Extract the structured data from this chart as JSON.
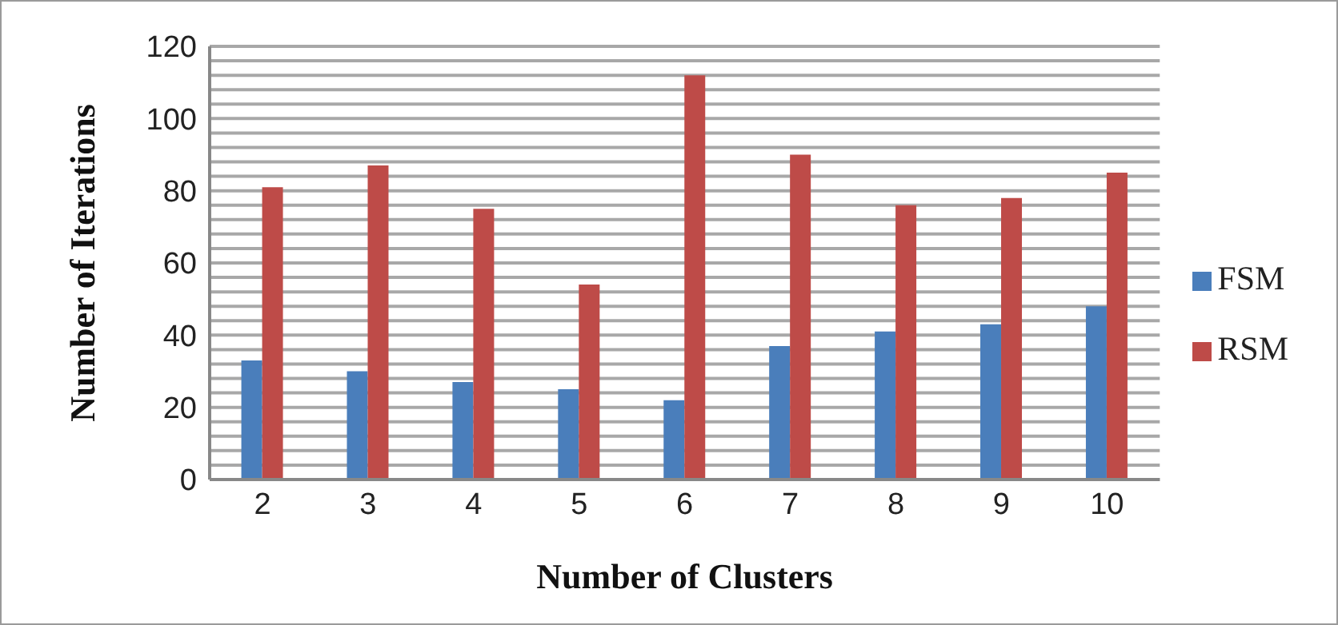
{
  "chart_data": {
    "type": "bar",
    "xlabel": "Number of Clusters",
    "ylabel": "Number of Iterations",
    "categories": [
      "2",
      "3",
      "4",
      "5",
      "6",
      "7",
      "8",
      "9",
      "10"
    ],
    "series": [
      {
        "name": "FSM",
        "color": "#4a7ebb",
        "values": [
          33,
          30,
          27,
          25,
          22,
          37,
          41,
          43,
          48
        ]
      },
      {
        "name": "RSM",
        "color": "#be4b48",
        "values": [
          81,
          87,
          75,
          54,
          112,
          90,
          76,
          78,
          85
        ]
      }
    ],
    "ylim": [
      0,
      120
    ],
    "yticks": [
      0,
      {
        "value": 4,
        "label": null
      },
      {
        "value": 8,
        "label": null
      },
      {
        "value": 12,
        "label": null
      },
      {
        "value": 16,
        "label": null
      },
      20,
      {
        "value": 24,
        "label": null
      },
      {
        "value": 28,
        "label": null
      },
      {
        "value": 32,
        "label": null
      },
      {
        "value": 36,
        "label": null
      },
      40,
      {
        "value": 44,
        "label": null
      },
      {
        "value": 48,
        "label": null
      },
      {
        "value": 52,
        "label": null
      },
      {
        "value": 56,
        "label": null
      },
      60,
      {
        "value": 64,
        "label": null
      },
      {
        "value": 68,
        "label": null
      },
      {
        "value": 72,
        "label": null
      },
      {
        "value": 76,
        "label": null
      },
      80,
      {
        "value": 84,
        "label": null
      },
      {
        "value": 88,
        "label": null
      },
      {
        "value": 92,
        "label": null
      },
      {
        "value": 96,
        "label": null
      },
      100,
      {
        "value": 104,
        "label": null
      },
      {
        "value": 108,
        "label": null
      },
      {
        "value": 112,
        "label": null
      },
      {
        "value": 116,
        "label": null
      },
      120
    ],
    "grid": "y",
    "legend": "right"
  }
}
